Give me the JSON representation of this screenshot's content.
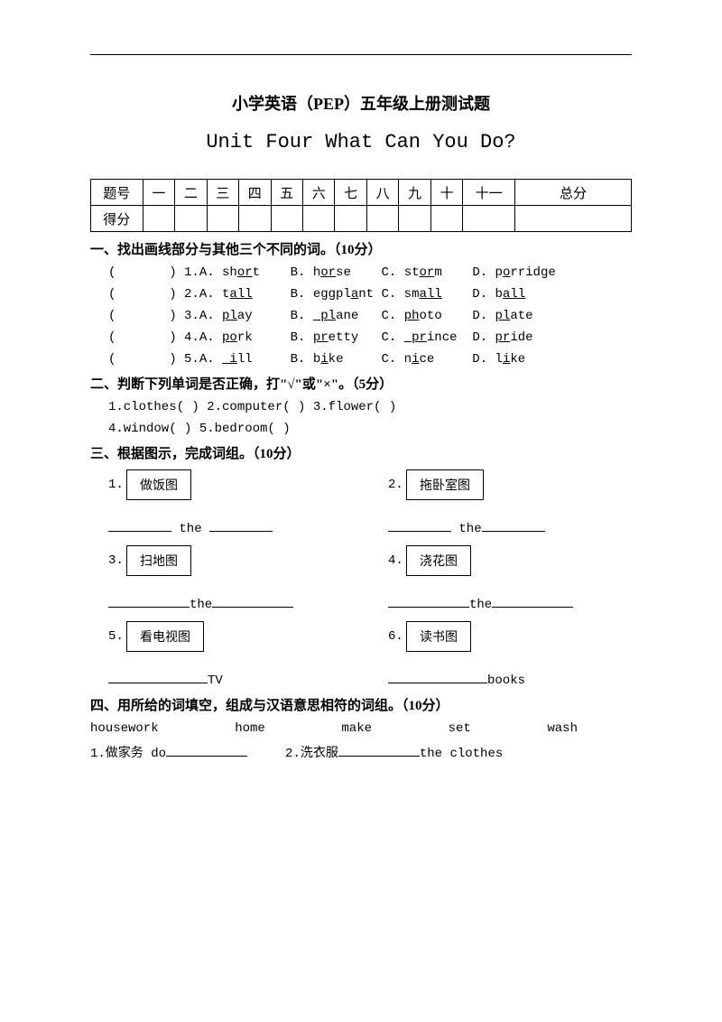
{
  "header1": "小学英语（PEP）五年级上册测试题",
  "header2": "Unit Four What Can You Do?",
  "score_table": {
    "row1": [
      "题号",
      "一",
      "二",
      "三",
      "四",
      "五",
      "六",
      "七",
      "八",
      "九",
      "十",
      "十一",
      "总分"
    ],
    "row2_label": "得分"
  },
  "section1_title": "一、找出画线部分与其他三个不同的词。（10分）",
  "q1": [
    {
      "num": "1",
      "a_pre": "sh",
      "a_u": "or",
      "a_post": "t",
      "b_pre": "h",
      "b_u": "or",
      "b_post": "se",
      "c_pre": "st",
      "c_u": "or",
      "c_post": "m",
      "d_pre": "p",
      "d_u": "o",
      "d_post": "rridge"
    },
    {
      "num": "2",
      "a_pre": "t",
      "a_u": "all",
      "a_post": "",
      "b_pre": "eggpl",
      "b_u": "a",
      "b_post": "nt",
      "c_pre": "sm",
      "c_u": "all",
      "c_post": "",
      "d_pre": "b",
      "d_u": "all",
      "d_post": ""
    },
    {
      "num": "3",
      "a_pre": "",
      "a_u": "pl",
      "a_post": "ay",
      "b_pre": "",
      "b_u": " pl",
      "b_post": "ane",
      "c_pre": "",
      "c_u": "ph",
      "c_post": "oto",
      "d_pre": "",
      "d_u": "pl",
      "d_post": "ate"
    },
    {
      "num": "4",
      "a_pre": "",
      "a_u": "po",
      "a_post": "rk",
      "b_pre": "",
      "b_u": "pr",
      "b_post": "etty",
      "c_pre": "",
      "c_u": " pr",
      "c_post": "ince",
      "d_pre": "",
      "d_u": "pr",
      "d_post": "ide"
    },
    {
      "num": "5",
      "a_pre": "",
      "a_u": " i",
      "a_post": "ll",
      "b_pre": "b",
      "b_u": "i",
      "b_post": "ke",
      "c_pre": "n",
      "c_u": "i",
      "c_post": "ce",
      "d_pre": "l",
      "d_u": "i",
      "d_post": "ke"
    }
  ],
  "section2_title": "二、判断下列单词是否正确，打\"√\"或\"×\"。（5分）",
  "q2a": "1.clothes(      )  2.computer(       )  3.flower(        )",
  "q2b": "4.window(      )  5.bedroom(       )",
  "section3_title": "三、根据图示，完成词组。（10分）",
  "q3": [
    {
      "num": "1.",
      "label": "做饭图",
      "fill_pre": "",
      "fill_mid": " the ",
      "fill_post": ""
    },
    {
      "num": "2.",
      "label": "拖卧室图",
      "fill_pre": "",
      "fill_mid": " the",
      "fill_post": ""
    },
    {
      "num": "3.",
      "label": "扫地图",
      "fill_pre": "",
      "fill_mid": "the",
      "fill_post": ""
    },
    {
      "num": "4.",
      "label": "浇花图",
      "fill_pre": "",
      "fill_mid": "the",
      "fill_post": ""
    },
    {
      "num": "5.",
      "label": "看电视图",
      "fill_pre": "",
      "fill_mid": "TV",
      "fill_post": ""
    },
    {
      "num": "6.",
      "label": "读书图",
      "fill_pre": "",
      "fill_mid": "books",
      "fill_post": ""
    }
  ],
  "section4_title": "四、用所给的词填空，组成与汉语意思相符的词组。（10分）",
  "q4_words": [
    "housework",
    "home",
    "make",
    "set",
    "wash"
  ],
  "q4_row1_a": "1.做家务  do",
  "q4_row1_b": "2.洗衣服",
  "q4_row1_c": "the clothes"
}
